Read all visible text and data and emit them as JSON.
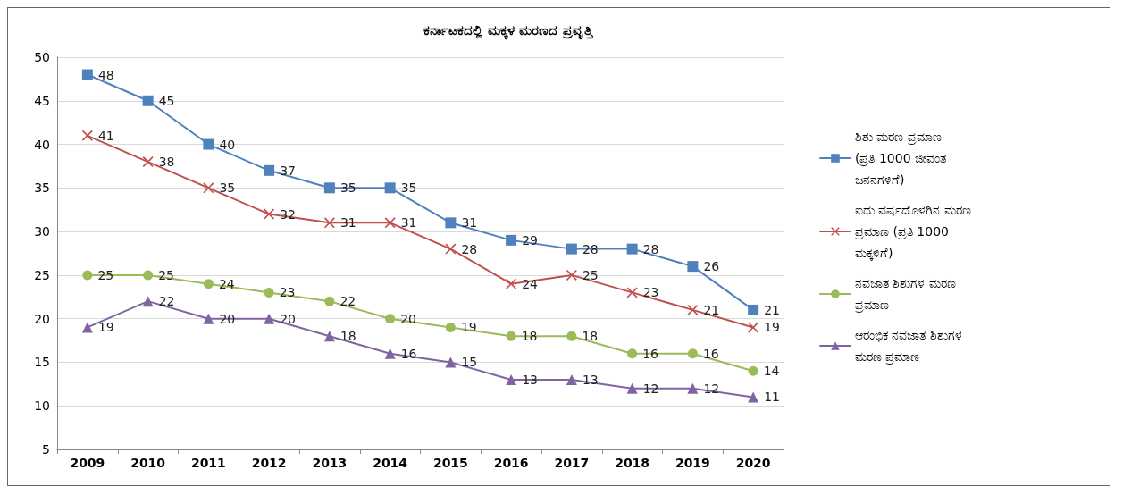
{
  "chart_data": {
    "type": "line",
    "title": "ಕರ್ನಾಟಕದಲ್ಲಿ ಮಕ್ಕಳ ಮರಣದ ಪ್ರವೃತ್ತಿ",
    "categories": [
      "2009",
      "2010",
      "2011",
      "2012",
      "2013",
      "2014",
      "2015",
      "2016",
      "2017",
      "2018",
      "2019",
      "2020"
    ],
    "series": [
      {
        "name": "ಶಿಶು ಮರಣ ಪ್ರಮಾಣ (ಪ್ರತಿ 1000 ಜೀವಂತ ಜನನಗಳಿಗೆ)",
        "color": "#4f81bd",
        "marker": "square",
        "values": [
          48,
          45,
          40,
          37,
          35,
          35,
          31,
          29,
          28,
          28,
          26,
          21
        ]
      },
      {
        "name": "ಐದು ವರ್ಷದೊಳಗಿನ ಮರಣ ಪ್ರಮಾಣ (ಪ್ರತಿ 1000 ಮಕ್ಕಳಿಗೆ)",
        "color": "#c0504d",
        "marker": "cross",
        "values": [
          41,
          38,
          35,
          32,
          31,
          31,
          28,
          24,
          25,
          23,
          21,
          19
        ]
      },
      {
        "name": "ನವಜಾತ ಶಿಶುಗಳ ಮರಣ ಪ್ರಮಾಣ",
        "color": "#9bbb59",
        "marker": "circle",
        "values": [
          25,
          25,
          24,
          23,
          22,
          20,
          19,
          18,
          18,
          16,
          16,
          14
        ]
      },
      {
        "name": "ಆರಂಭಿಕ ನವಜಾತ ಶಿಶುಗಳ ಮರಣ ಪ್ರಮಾಣ",
        "color": "#8064a2",
        "marker": "triangle",
        "values": [
          19,
          22,
          20,
          20,
          18,
          16,
          15,
          13,
          13,
          12,
          12,
          11
        ]
      }
    ],
    "ylim": [
      5,
      50
    ],
    "yticks": [
      5,
      10,
      15,
      20,
      25,
      30,
      35,
      40,
      45,
      50
    ],
    "grid": "y",
    "legend": "right",
    "data_labels": true,
    "line_style": "solid"
  }
}
